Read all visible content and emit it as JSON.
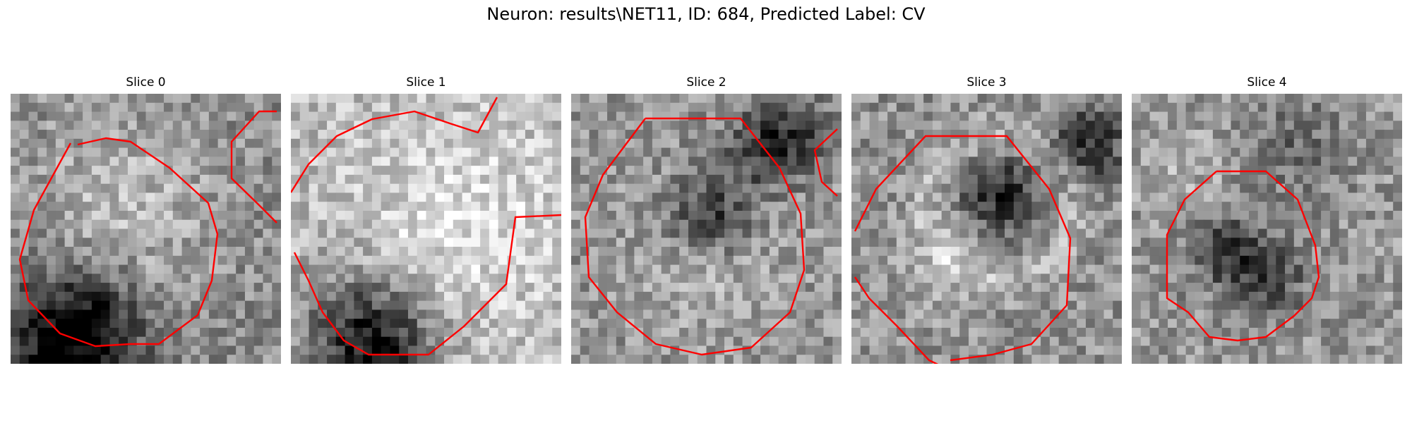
{
  "figure": {
    "title": "Neuron: results\\NET11, ID: 684, Predicted Label: CV"
  },
  "colors": {
    "contour": "#ff0000",
    "background": "#ffffff"
  },
  "slices": [
    {
      "title": "Slice 0"
    },
    {
      "title": "Slice 1"
    },
    {
      "title": "Slice 2"
    },
    {
      "title": "Slice 3"
    },
    {
      "title": "Slice 4"
    }
  ]
}
